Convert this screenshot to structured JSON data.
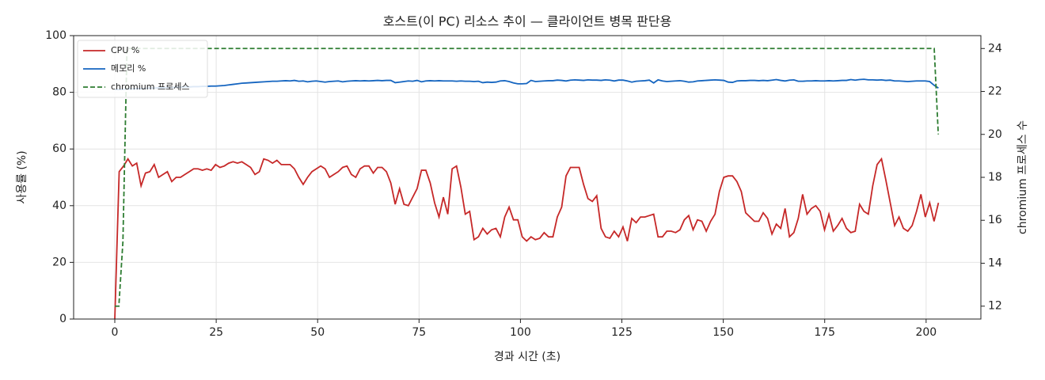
{
  "chart_data": {
    "type": "line",
    "title": "호스트(이 PC) 리소스 추이 — 클라이언트 병목 판단용",
    "x_label": "경과 시간 (초)",
    "y_label": "사용률 (%)",
    "y2_label": "chromium 프로세스 수",
    "xlim": [
      -10.15,
      213.5
    ],
    "xticks": [
      0,
      25,
      50,
      75,
      100,
      125,
      150,
      175,
      200
    ],
    "ylim": [
      0,
      100
    ],
    "yticks": [
      0,
      20,
      40,
      60,
      80,
      100
    ],
    "y2lim": [
      11.4,
      24.6
    ],
    "y2ticks": [
      12,
      14,
      16,
      18,
      20,
      22,
      24
    ],
    "grid": true,
    "legend": "upper-left",
    "x": [
      0,
      1.08,
      2.16,
      3.24,
      4.32,
      5.4,
      6.48,
      7.56,
      8.64,
      9.72,
      10.8,
      11.88,
      12.96,
      14.04,
      15.12,
      16.2,
      17.28,
      18.36,
      19.44,
      20.52,
      21.6,
      22.68,
      23.76,
      24.84,
      25.92,
      27,
      28.08,
      29.16,
      30.24,
      31.32,
      32.4,
      33.48,
      34.56,
      35.64,
      36.72,
      37.8,
      38.88,
      39.96,
      41.04,
      42.12,
      43.2,
      44.28,
      45.36,
      46.44,
      47.52,
      48.6,
      49.68,
      50.76,
      51.84,
      52.92,
      54,
      55.08,
      56.16,
      57.24,
      58.32,
      59.4,
      60.48,
      61.56,
      62.64,
      63.72,
      64.8,
      65.88,
      66.96,
      68.04,
      69.12,
      70.2,
      71.28,
      72.36,
      73.44,
      74.52,
      75.6,
      76.68,
      77.76,
      78.84,
      79.92,
      81,
      82.08,
      83.16,
      84.24,
      85.32,
      86.4,
      87.48,
      88.56,
      89.64,
      90.72,
      91.8,
      92.88,
      93.96,
      95.04,
      96.12,
      97.2,
      98.28,
      99.36,
      100.44,
      101.52,
      102.6,
      103.68,
      104.76,
      105.84,
      106.92,
      108,
      109.08,
      110.16,
      111.24,
      112.32,
      113.4,
      114.48,
      115.56,
      116.64,
      117.72,
      118.8,
      119.88,
      120.96,
      122.04,
      123.12,
      124.2,
      125.28,
      126.36,
      127.44,
      128.52,
      129.6,
      130.68,
      131.76,
      132.84,
      133.92,
      135,
      136.08,
      137.16,
      138.24,
      139.32,
      140.4,
      141.48,
      142.56,
      143.64,
      144.72,
      145.8,
      146.88,
      147.96,
      149.04,
      150.12,
      151.2,
      152.28,
      153.36,
      154.44,
      155.52,
      156.6,
      157.68,
      158.76,
      159.84,
      160.92,
      162,
      163.08,
      164.16,
      165.24,
      166.32,
      167.4,
      168.48,
      169.56,
      170.64,
      171.72,
      172.8,
      173.88,
      174.96,
      176.04,
      177.12,
      178.2,
      179.28,
      180.36,
      181.44,
      182.52,
      183.6,
      184.68,
      185.76,
      186.84,
      187.92,
      189,
      190.08,
      191.16,
      192.24,
      193.32,
      194.4,
      195.48,
      196.56,
      197.64,
      198.72,
      199.8,
      200.88,
      201.96,
      203.04
    ],
    "series": [
      {
        "name": "CPU %",
        "color": "#c62828",
        "values": [
          0,
          52,
          54,
          56.5,
          54,
          55,
          47,
          51.5,
          52,
          54.5,
          50,
          51,
          52,
          48.5,
          50,
          50,
          51,
          52,
          53,
          53,
          52.5,
          53,
          52.5,
          54.5,
          53.5,
          54,
          55,
          55.5,
          55,
          55.5,
          54.5,
          53.5,
          51,
          52,
          56.5,
          56,
          55,
          56,
          54.5,
          54.5,
          54.5,
          53,
          50,
          47.5,
          50,
          52,
          53,
          54,
          53,
          50,
          51,
          52,
          53.5,
          54,
          51,
          50,
          53,
          54,
          54,
          51.5,
          53.5,
          53.5,
          52,
          48,
          40.5,
          46,
          40.5,
          40,
          43,
          46,
          52.5,
          52.5,
          48,
          41,
          36,
          43,
          37,
          53,
          54,
          46.5,
          37,
          38,
          28,
          29,
          32,
          30,
          31.5,
          32,
          29,
          36,
          39.5,
          35,
          35,
          29,
          27.5,
          29,
          28,
          28.5,
          30.5,
          29,
          29,
          36,
          39.5,
          50.5,
          53.5,
          53.5,
          53.5,
          47.5,
          42.5,
          41.5,
          43.5,
          32,
          29,
          28.5,
          31,
          29,
          32.5,
          27.5,
          35.5,
          34,
          36,
          36,
          36.5,
          37,
          29,
          29,
          31,
          31,
          30.5,
          31.5,
          35,
          36.5,
          31.5,
          35,
          34.5,
          31,
          34.5,
          37,
          45,
          50,
          50.5,
          50.5,
          48.5,
          45,
          37.5,
          36,
          34.5,
          34.5,
          37.5,
          35.5,
          30,
          33.5,
          32,
          39,
          29,
          30.5,
          35.5,
          44,
          37,
          39,
          40,
          38,
          31.5,
          37,
          31,
          33,
          35.5,
          32,
          30.5,
          31,
          40.5,
          38,
          37,
          47,
          54.5,
          56.5,
          49,
          41,
          33,
          36,
          32,
          31,
          33,
          38,
          44,
          36,
          41,
          34.5,
          41
        ]
      },
      {
        "name": "메모리 %",
        "color": "#1565c0",
        "values": [
          81.0,
          81.0,
          81.1,
          81.2,
          81.2,
          81.3,
          81.3,
          81.4,
          81.5,
          81.5,
          81.6,
          81.6,
          81.7,
          81.7,
          81.8,
          81.8,
          81.9,
          81.9,
          82.0,
          82.0,
          82.1,
          82.1,
          82.2,
          82.2,
          82.3,
          82.4,
          82.6,
          82.8,
          83.0,
          83.2,
          83.3,
          83.4,
          83.5,
          83.6,
          83.7,
          83.8,
          83.9,
          83.9,
          84.0,
          84.1,
          84.0,
          84.2,
          83.9,
          84.0,
          83.7,
          83.9,
          84.0,
          83.8,
          83.6,
          83.8,
          83.9,
          84.0,
          83.7,
          83.9,
          84.0,
          84.1,
          84.0,
          84.1,
          84.0,
          84.1,
          84.2,
          84.1,
          84.2,
          84.2,
          83.4,
          83.6,
          83.8,
          84.0,
          83.9,
          84.2,
          83.7,
          84.0,
          84.1,
          84.0,
          84.1,
          84.0,
          84.0,
          84.0,
          83.9,
          84.0,
          83.9,
          83.9,
          83.8,
          83.9,
          83.4,
          83.6,
          83.5,
          83.6,
          84.0,
          84.1,
          83.8,
          83.3,
          83.0,
          83.0,
          83.1,
          84.2,
          83.8,
          83.9,
          84.0,
          84.1,
          84.1,
          84.3,
          84.2,
          84.0,
          84.3,
          84.4,
          84.3,
          84.2,
          84.4,
          84.3,
          84.3,
          84.2,
          84.4,
          84.3,
          84.0,
          84.3,
          84.3,
          84.0,
          83.6,
          83.9,
          84.0,
          84.1,
          84.3,
          83.3,
          84.4,
          84.0,
          83.8,
          83.9,
          84.0,
          84.1,
          83.9,
          83.6,
          83.7,
          84.0,
          84.1,
          84.2,
          84.3,
          84.4,
          84.3,
          84.2,
          83.6,
          83.5,
          84.0,
          84.1,
          84.1,
          84.2,
          84.2,
          84.1,
          84.2,
          84.1,
          84.3,
          84.5,
          84.2,
          84.0,
          84.3,
          84.4,
          83.9,
          83.9,
          84.0,
          84.0,
          84.1,
          84.0,
          84.0,
          84.1,
          84.0,
          84.1,
          84.2,
          84.2,
          84.5,
          84.3,
          84.5,
          84.6,
          84.4,
          84.4,
          84.3,
          84.4,
          84.2,
          84.3,
          84.0,
          84.0,
          83.9,
          83.8,
          83.9,
          84.0,
          84.0,
          84.0,
          83.8,
          82.5,
          81.5
        ]
      },
      {
        "name": "chromium 프로세스",
        "color": "#2e7d32",
        "axis": "y2",
        "dashed": true,
        "x": [
          0,
          1,
          2,
          3,
          202,
          203
        ],
        "values": [
          12,
          12,
          15,
          24,
          24,
          20
        ]
      }
    ]
  }
}
